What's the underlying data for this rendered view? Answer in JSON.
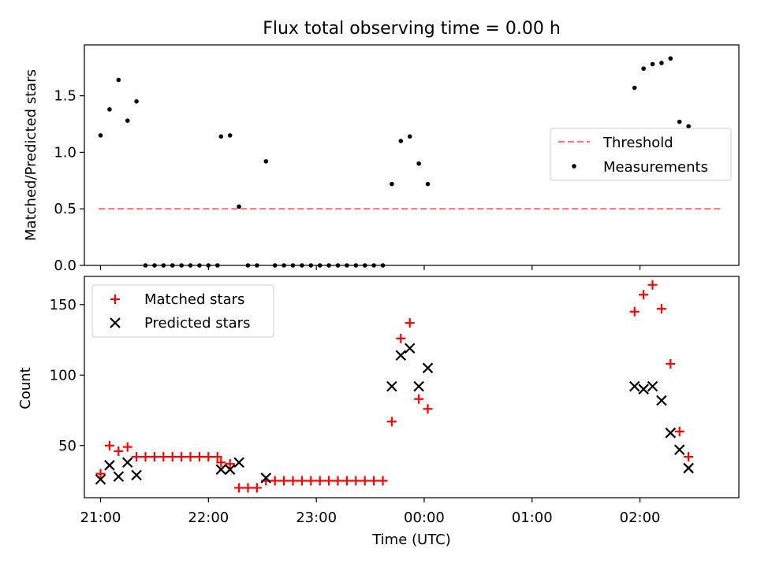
{
  "title": "Flux total observing time = 0.00 h",
  "colors": {
    "threshold": "#ff7777",
    "measurements": "#000000",
    "matched": "#ff0000",
    "predicted": "#000000"
  },
  "chart_data": [
    {
      "type": "scatter",
      "panel": "top",
      "ylabel": "Matched/Predicted stars",
      "xlim": [
        "20:51",
        "02:55"
      ],
      "ylim": [
        0,
        1.95
      ],
      "yticks": [
        0.0,
        0.5,
        1.0,
        1.5
      ],
      "ytick_labels": [
        "0.0",
        "0.5",
        "1.0",
        "1.5"
      ],
      "legend": {
        "position": "right",
        "entries": [
          "Threshold",
          "Measurements"
        ]
      },
      "series": [
        {
          "name": "Threshold",
          "style": "dashed-line",
          "points": [
            [
              "20:59",
              0.5
            ],
            [
              "02:45",
              0.5
            ]
          ]
        },
        {
          "name": "Measurements",
          "style": "dot",
          "points": [
            [
              "21:00",
              1.15
            ],
            [
              "21:05",
              1.38
            ],
            [
              "21:10",
              1.64
            ],
            [
              "21:15",
              1.28
            ],
            [
              "21:20",
              1.45
            ],
            [
              "21:25",
              0
            ],
            [
              "21:30",
              0
            ],
            [
              "21:35",
              0
            ],
            [
              "21:40",
              0
            ],
            [
              "21:45",
              0
            ],
            [
              "21:50",
              0
            ],
            [
              "21:55",
              0
            ],
            [
              "22:00",
              0
            ],
            [
              "22:05",
              0
            ],
            [
              "22:07",
              1.14
            ],
            [
              "22:12",
              1.15
            ],
            [
              "22:17",
              0.52
            ],
            [
              "22:22",
              0
            ],
            [
              "22:27",
              0
            ],
            [
              "22:32",
              0.92
            ],
            [
              "22:37",
              0
            ],
            [
              "22:42",
              0
            ],
            [
              "22:47",
              0
            ],
            [
              "22:52",
              0
            ],
            [
              "22:57",
              0
            ],
            [
              "23:02",
              0
            ],
            [
              "23:07",
              0
            ],
            [
              "23:12",
              0
            ],
            [
              "23:17",
              0
            ],
            [
              "23:22",
              0
            ],
            [
              "23:27",
              0
            ],
            [
              "23:32",
              0
            ],
            [
              "23:37",
              0
            ],
            [
              "23:42",
              0.72
            ],
            [
              "23:47",
              1.1
            ],
            [
              "23:52",
              1.14
            ],
            [
              "23:57",
              0.9
            ],
            [
              "00:02",
              0.72
            ],
            [
              "01:57",
              1.57
            ],
            [
              "02:02",
              1.74
            ],
            [
              "02:07",
              1.78
            ],
            [
              "02:12",
              1.79
            ],
            [
              "02:17",
              1.83
            ],
            [
              "02:22",
              1.27
            ],
            [
              "02:27",
              1.23
            ]
          ]
        }
      ]
    },
    {
      "type": "scatter",
      "panel": "bottom",
      "xlabel": "Time (UTC)",
      "ylabel": "Count",
      "xlim": [
        "20:51",
        "02:55"
      ],
      "ylim": [
        13,
        170
      ],
      "xticks": [
        "21:00",
        "22:00",
        "23:00",
        "00:00",
        "01:00",
        "02:00"
      ],
      "yticks": [
        50,
        100,
        150
      ],
      "ytick_labels": [
        "50",
        "100",
        "150"
      ],
      "legend": {
        "position": "top-left",
        "entries": [
          "Matched stars",
          "Predicted stars"
        ]
      },
      "series": [
        {
          "name": "Matched stars",
          "marker": "+",
          "points": [
            [
              "21:00",
              30
            ],
            [
              "21:05",
              50
            ],
            [
              "21:10",
              46
            ],
            [
              "21:15",
              49
            ],
            [
              "21:20",
              42
            ],
            [
              "21:25",
              42
            ],
            [
              "21:30",
              42
            ],
            [
              "21:35",
              42
            ],
            [
              "21:40",
              42
            ],
            [
              "21:45",
              42
            ],
            [
              "21:50",
              42
            ],
            [
              "21:55",
              42
            ],
            [
              "22:00",
              42
            ],
            [
              "22:05",
              42
            ],
            [
              "22:07",
              38
            ],
            [
              "22:12",
              37
            ],
            [
              "22:17",
              20
            ],
            [
              "22:22",
              20
            ],
            [
              "22:27",
              20
            ],
            [
              "22:32",
              25
            ],
            [
              "22:37",
              25
            ],
            [
              "22:42",
              25
            ],
            [
              "22:47",
              25
            ],
            [
              "22:52",
              25
            ],
            [
              "22:57",
              25
            ],
            [
              "23:02",
              25
            ],
            [
              "23:07",
              25
            ],
            [
              "23:12",
              25
            ],
            [
              "23:17",
              25
            ],
            [
              "23:22",
              25
            ],
            [
              "23:27",
              25
            ],
            [
              "23:32",
              25
            ],
            [
              "23:37",
              25
            ],
            [
              "23:42",
              67
            ],
            [
              "23:47",
              126
            ],
            [
              "23:52",
              137
            ],
            [
              "23:57",
              83
            ],
            [
              "00:02",
              76
            ],
            [
              "01:57",
              145
            ],
            [
              "02:02",
              157
            ],
            [
              "02:07",
              164
            ],
            [
              "02:12",
              147
            ],
            [
              "02:17",
              108
            ],
            [
              "02:22",
              60
            ],
            [
              "02:27",
              42
            ]
          ]
        },
        {
          "name": "Predicted stars",
          "marker": "x",
          "points": [
            [
              "21:00",
              26
            ],
            [
              "21:05",
              36
            ],
            [
              "21:10",
              28
            ],
            [
              "21:15",
              38
            ],
            [
              "21:20",
              29
            ],
            [
              "22:07",
              33
            ],
            [
              "22:12",
              33
            ],
            [
              "22:17",
              38
            ],
            [
              "22:32",
              27
            ],
            [
              "23:42",
              92
            ],
            [
              "23:47",
              114
            ],
            [
              "23:52",
              119
            ],
            [
              "23:57",
              92
            ],
            [
              "00:02",
              105
            ],
            [
              "01:57",
              92
            ],
            [
              "02:02",
              90
            ],
            [
              "02:07",
              92
            ],
            [
              "02:12",
              82
            ],
            [
              "02:17",
              59
            ],
            [
              "02:22",
              47
            ],
            [
              "02:27",
              34
            ]
          ]
        }
      ]
    }
  ]
}
